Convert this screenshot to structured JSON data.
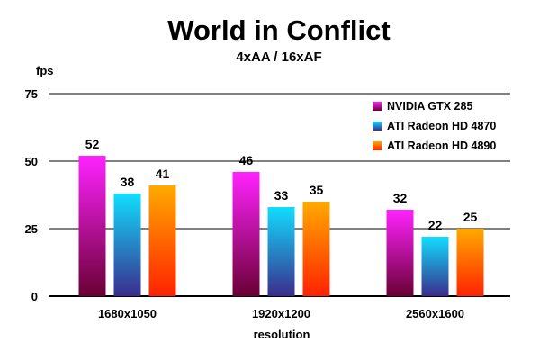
{
  "chart_data": {
    "type": "bar",
    "title": "World in Conflict",
    "subtitle": "4xAA / 16xAF",
    "xlabel": "resolution",
    "ylabel": "fps",
    "ylim": [
      0,
      75
    ],
    "yticks": [
      "0",
      "25",
      "50",
      "75"
    ],
    "grid": true,
    "legend_position": "top-right",
    "categories": [
      "1680x1050",
      "1920x1200",
      "2560x1600"
    ],
    "series": [
      {
        "name": "NVIDIA GTX 285",
        "values": [
          52,
          46,
          32
        ],
        "color_top": "#ff22ff",
        "color_bottom": "#6a0034"
      },
      {
        "name": "ATI Radeon HD 4870",
        "values": [
          38,
          33,
          22
        ],
        "color_top": "#11ddff",
        "color_bottom": "#3a2d8c"
      },
      {
        "name": "ATI Radeon HD 4890",
        "values": [
          41,
          35,
          25
        ],
        "color_top": "#ffaa00",
        "color_bottom": "#ff2200"
      }
    ]
  }
}
